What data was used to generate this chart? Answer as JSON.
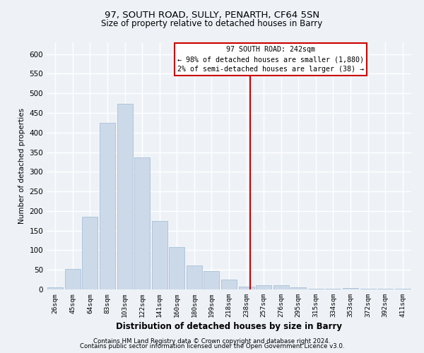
{
  "title1": "97, SOUTH ROAD, SULLY, PENARTH, CF64 5SN",
  "title2": "Size of property relative to detached houses in Barry",
  "xlabel": "Distribution of detached houses by size in Barry",
  "ylabel": "Number of detached properties",
  "bar_labels": [
    "26sqm",
    "45sqm",
    "64sqm",
    "83sqm",
    "103sqm",
    "122sqm",
    "141sqm",
    "160sqm",
    "180sqm",
    "199sqm",
    "218sqm",
    "238sqm",
    "257sqm",
    "276sqm",
    "295sqm",
    "315sqm",
    "334sqm",
    "353sqm",
    "372sqm",
    "392sqm",
    "411sqm"
  ],
  "bar_values": [
    5,
    52,
    186,
    425,
    473,
    337,
    174,
    108,
    61,
    46,
    25,
    8,
    10,
    10,
    5,
    2,
    1,
    3,
    2,
    1,
    1
  ],
  "bar_color": "#ccd9e8",
  "bar_edgecolor": "#a8c0d8",
  "vline_color": "#cc0000",
  "ylim": [
    0,
    630
  ],
  "yticks": [
    0,
    50,
    100,
    150,
    200,
    250,
    300,
    350,
    400,
    450,
    500,
    550,
    600
  ],
  "annotation_title": "97 SOUTH ROAD: 242sqm",
  "annotation_line1": "← 98% of detached houses are smaller (1,880)",
  "annotation_line2": "2% of semi-detached houses are larger (38) →",
  "annotation_box_color": "#cc0000",
  "footer1": "Contains HM Land Registry data © Crown copyright and database right 2024.",
  "footer2": "Contains public sector information licensed under the Open Government Licence v3.0.",
  "bg_color": "#eef2f7",
  "grid_color": "#ffffff"
}
